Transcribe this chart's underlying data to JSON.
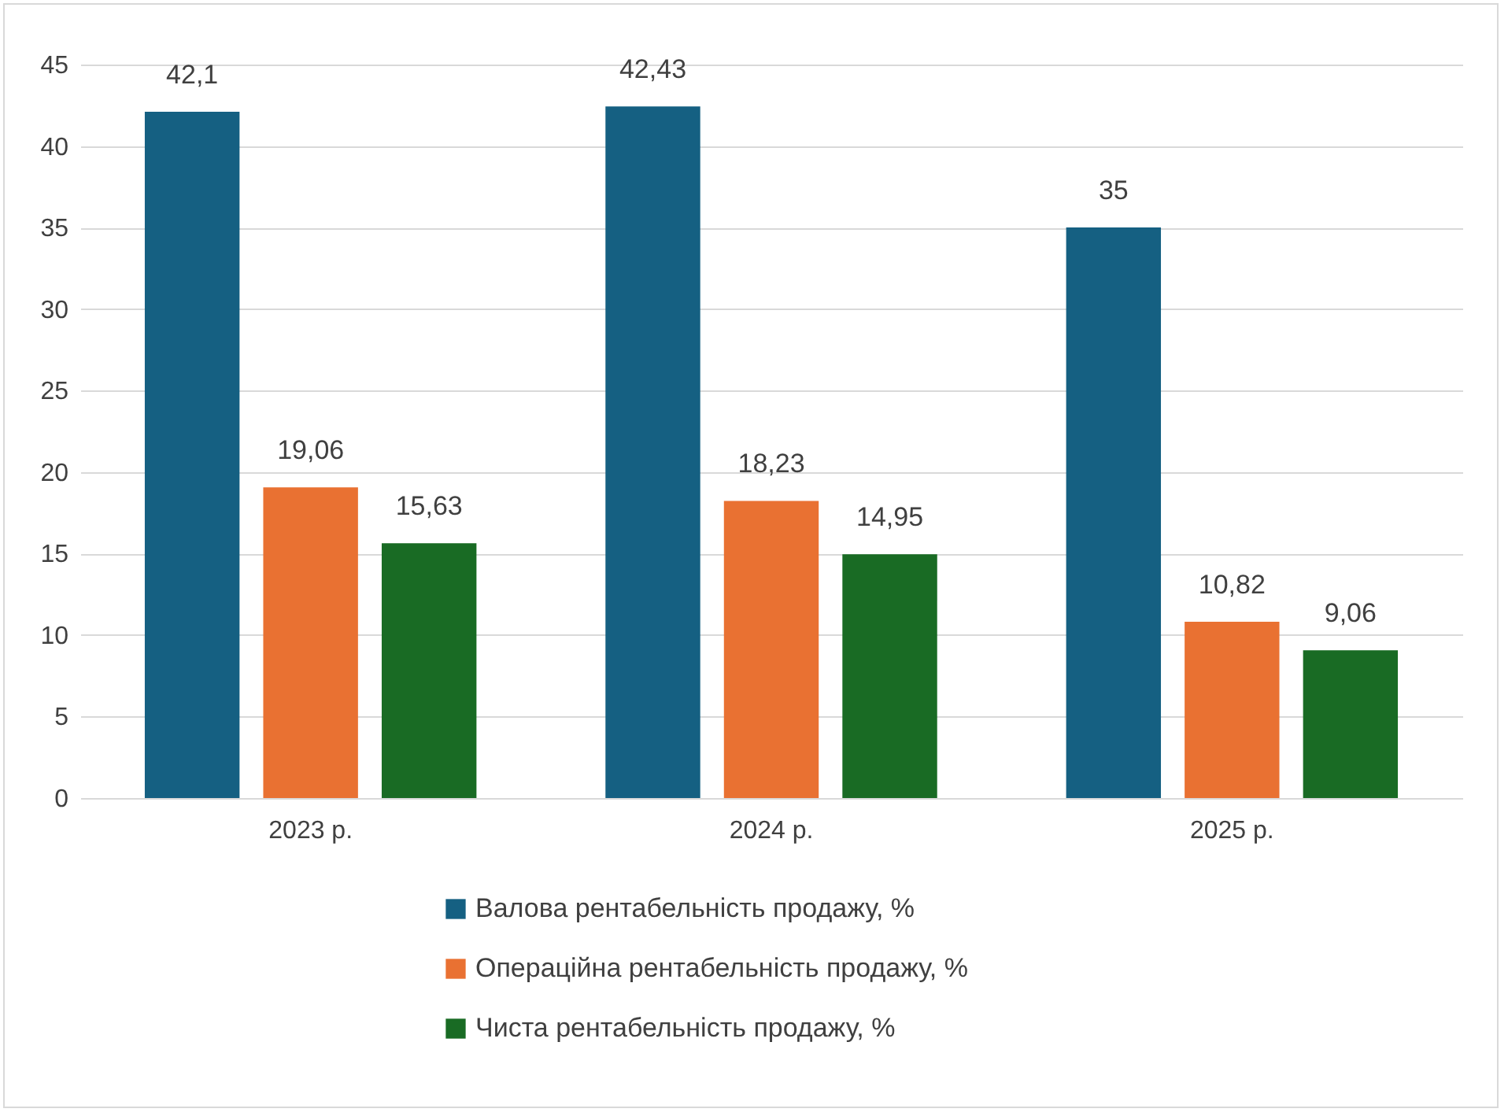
{
  "chart_data": {
    "type": "bar",
    "categories": [
      "2023 р.",
      "2024 р.",
      "2025 р."
    ],
    "series": [
      {
        "name": "Валова рентабельність продажу, %",
        "color": "#156082",
        "values": [
          42.1,
          42.43,
          35
        ],
        "value_labels": [
          "42,1",
          "42,43",
          "35"
        ]
      },
      {
        "name": "Операційна рентабельність продажу, %",
        "color": "#e97132",
        "values": [
          19.06,
          18.23,
          10.82
        ],
        "value_labels": [
          "19,06",
          "18,23",
          "10,82"
        ]
      },
      {
        "name": "Чиста рентабельність продажу, %",
        "color": "#196b24",
        "values": [
          15.63,
          14.95,
          9.06
        ],
        "value_labels": [
          "15,63",
          "14,95",
          "9,06"
        ]
      }
    ],
    "ylim": [
      0,
      45
    ],
    "yticks": [
      0,
      5,
      10,
      15,
      20,
      25,
      30,
      35,
      40,
      45
    ],
    "grid": "y",
    "legend": "bottom"
  }
}
